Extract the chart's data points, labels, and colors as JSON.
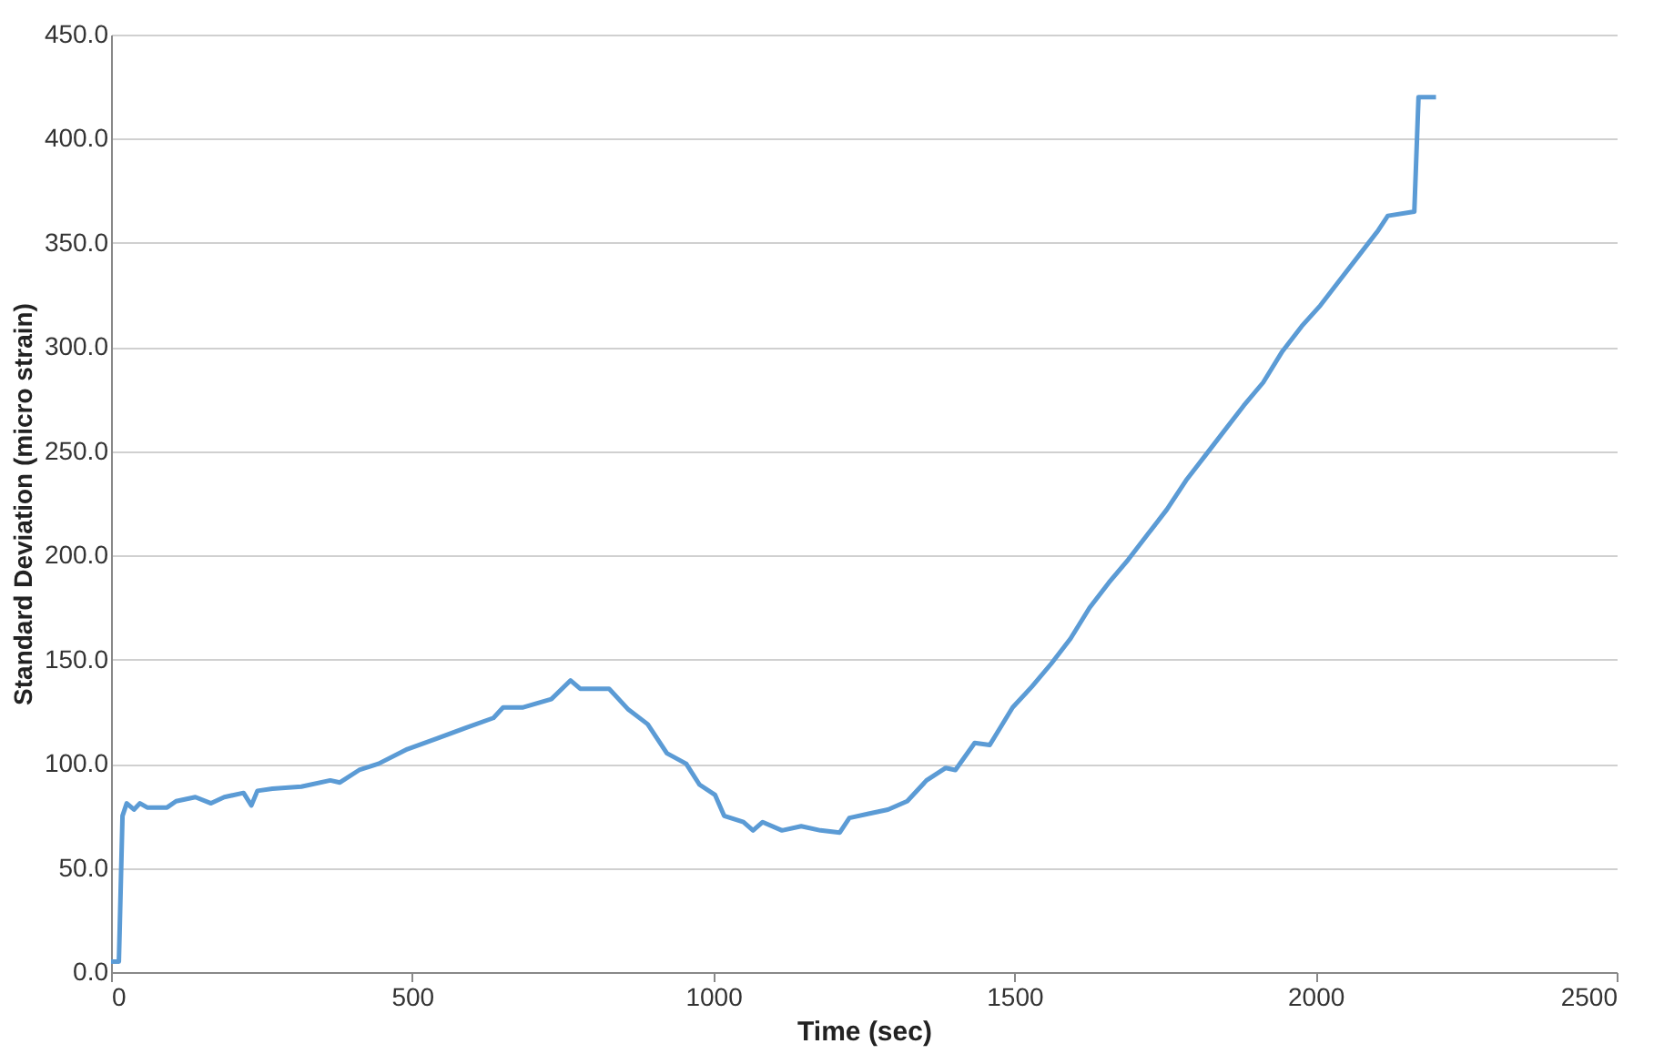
{
  "chart_data": {
    "type": "line",
    "xlabel": "Time (sec)",
    "ylabel": "Standard Deviation (micro strain)",
    "x": [
      0,
      10,
      13,
      19,
      26,
      38,
      48,
      60,
      93,
      108,
      140,
      166,
      188,
      220,
      233,
      243,
      268,
      316,
      364,
      380,
      412,
      444,
      492,
      540,
      587,
      635,
      651,
      683,
      731,
      763,
      779,
      827,
      859,
      891,
      923,
      955,
      977,
      1003,
      1018,
      1050,
      1066,
      1082,
      1114,
      1146,
      1178,
      1210,
      1226,
      1258,
      1290,
      1322,
      1354,
      1386,
      1402,
      1434,
      1459,
      1497,
      1529,
      1561,
      1593,
      1625,
      1657,
      1689,
      1721,
      1753,
      1785,
      1817,
      1849,
      1881,
      1913,
      1945,
      1977,
      2008,
      2040,
      2072,
      2104,
      2120,
      2164,
      2171,
      2200
    ],
    "series": [
      {
        "color": "#5b9bd5",
        "values": [
          5,
          5,
          5,
          75,
          81,
          78,
          81,
          79,
          79,
          82,
          84,
          81,
          84,
          86,
          80,
          87,
          88,
          89,
          92,
          91,
          97,
          100,
          107,
          112,
          117,
          122,
          127,
          127,
          131,
          140,
          136,
          136,
          126,
          119,
          105,
          100,
          90,
          85,
          75,
          72,
          68,
          72,
          68,
          70,
          68,
          67,
          74,
          76,
          78,
          82,
          92,
          98,
          97,
          110,
          109,
          127,
          137,
          148,
          160,
          175,
          187,
          198,
          210,
          222,
          236,
          248,
          260,
          272,
          283,
          298,
          310,
          320,
          332,
          344,
          356,
          363,
          365,
          420,
          420
        ]
      }
    ],
    "xlim": [
      0,
      2500
    ],
    "xticks": [
      0,
      500,
      1000,
      1500,
      2000,
      2500
    ],
    "ylim": [
      0,
      450
    ],
    "yticks": [
      {
        "value": 0,
        "label": "0.0"
      },
      {
        "value": 50,
        "label": "50.0"
      },
      {
        "value": 100,
        "label": "100.0"
      },
      {
        "value": 150,
        "label": "150.0"
      },
      {
        "value": 200,
        "label": "200.0"
      },
      {
        "value": 250,
        "label": "250.0"
      },
      {
        "value": 300,
        "label": "300.0"
      },
      {
        "value": 350,
        "label": "350.0"
      },
      {
        "value": 400,
        "label": "400.0"
      },
      {
        "value": 450,
        "label": "450.0"
      }
    ],
    "grid": "y",
    "marker": "none",
    "line_style": "solid"
  }
}
